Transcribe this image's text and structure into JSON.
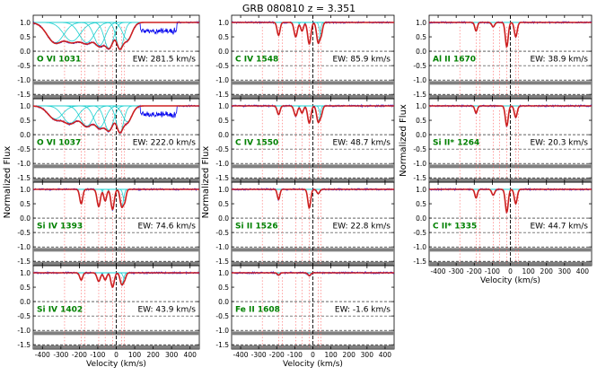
{
  "title": "GRB 080810  z = 3.351",
  "colors": {
    "data": "#0000ee",
    "model": "#cd2020",
    "component": "#20d0d0",
    "label": "#008000",
    "residual_band": "#808080",
    "component_marker": "#ff6060"
  },
  "chart_data": {
    "type": "line",
    "title": "GRB 080810  z = 3.351",
    "ylabel": "Normalized Flux",
    "xlabel": "Velocity (km/s)",
    "xlim": [
      -450,
      450
    ],
    "ylim": [
      -1.65,
      1.25
    ],
    "yticks": [
      "1.0",
      "0.5",
      "0.0",
      "-0.5",
      "-1.0",
      "-1.5"
    ],
    "xticks": [
      "-400",
      "-300",
      "-200",
      "-100",
      "0",
      "100",
      "200",
      "300",
      "400"
    ],
    "component_velocities": [
      -280,
      -190,
      -170,
      -95,
      -60,
      -20,
      30,
      45
    ],
    "columns": [
      {
        "show_xlabel": false,
        "panels": [
          {
            "label": "O VI 1031",
            "ew": "EW: 281.5 km/s",
            "ylabels": true,
            "xticks": false
          },
          {
            "label": "O VI 1037",
            "ew": "EW: 222.0 km/s",
            "ylabels": true,
            "xticks": false
          },
          {
            "label": "Si IV 1393",
            "ew": "EW: 74.6 km/s",
            "ylabels": true,
            "xticks": false
          },
          {
            "label": "Si IV 1402",
            "ew": "EW: 43.9 km/s",
            "ylabels": true,
            "xticks": true
          }
        ]
      },
      {
        "show_xlabel": true,
        "panels": [
          {
            "label": "C IV 1548",
            "ew": "EW: 85.9 km/s",
            "ylabels": true,
            "xticks": false
          },
          {
            "label": "C IV 1550",
            "ew": "EW: 48.7 km/s",
            "ylabels": true,
            "xticks": false
          },
          {
            "label": "Si II 1526",
            "ew": "EW: 22.8 km/s",
            "ylabels": true,
            "xticks": false
          },
          {
            "label": "Fe II 1608",
            "ew": "EW: -1.6 km/s",
            "ylabels": true,
            "xticks": true
          }
        ]
      },
      {
        "show_xlabel": true,
        "panels": [
          {
            "label": "Al II 1670",
            "ew": "EW: 38.9 km/s",
            "ylabels": true,
            "xticks": false
          },
          {
            "label": "Si II* 1264",
            "ew": "EW: 20.3 km/s",
            "ylabels": true,
            "xticks": false
          },
          {
            "label": "C II* 1335",
            "ew": "EW: 44.7 km/s",
            "ylabels": true,
            "xticks": true
          }
        ]
      }
    ]
  }
}
